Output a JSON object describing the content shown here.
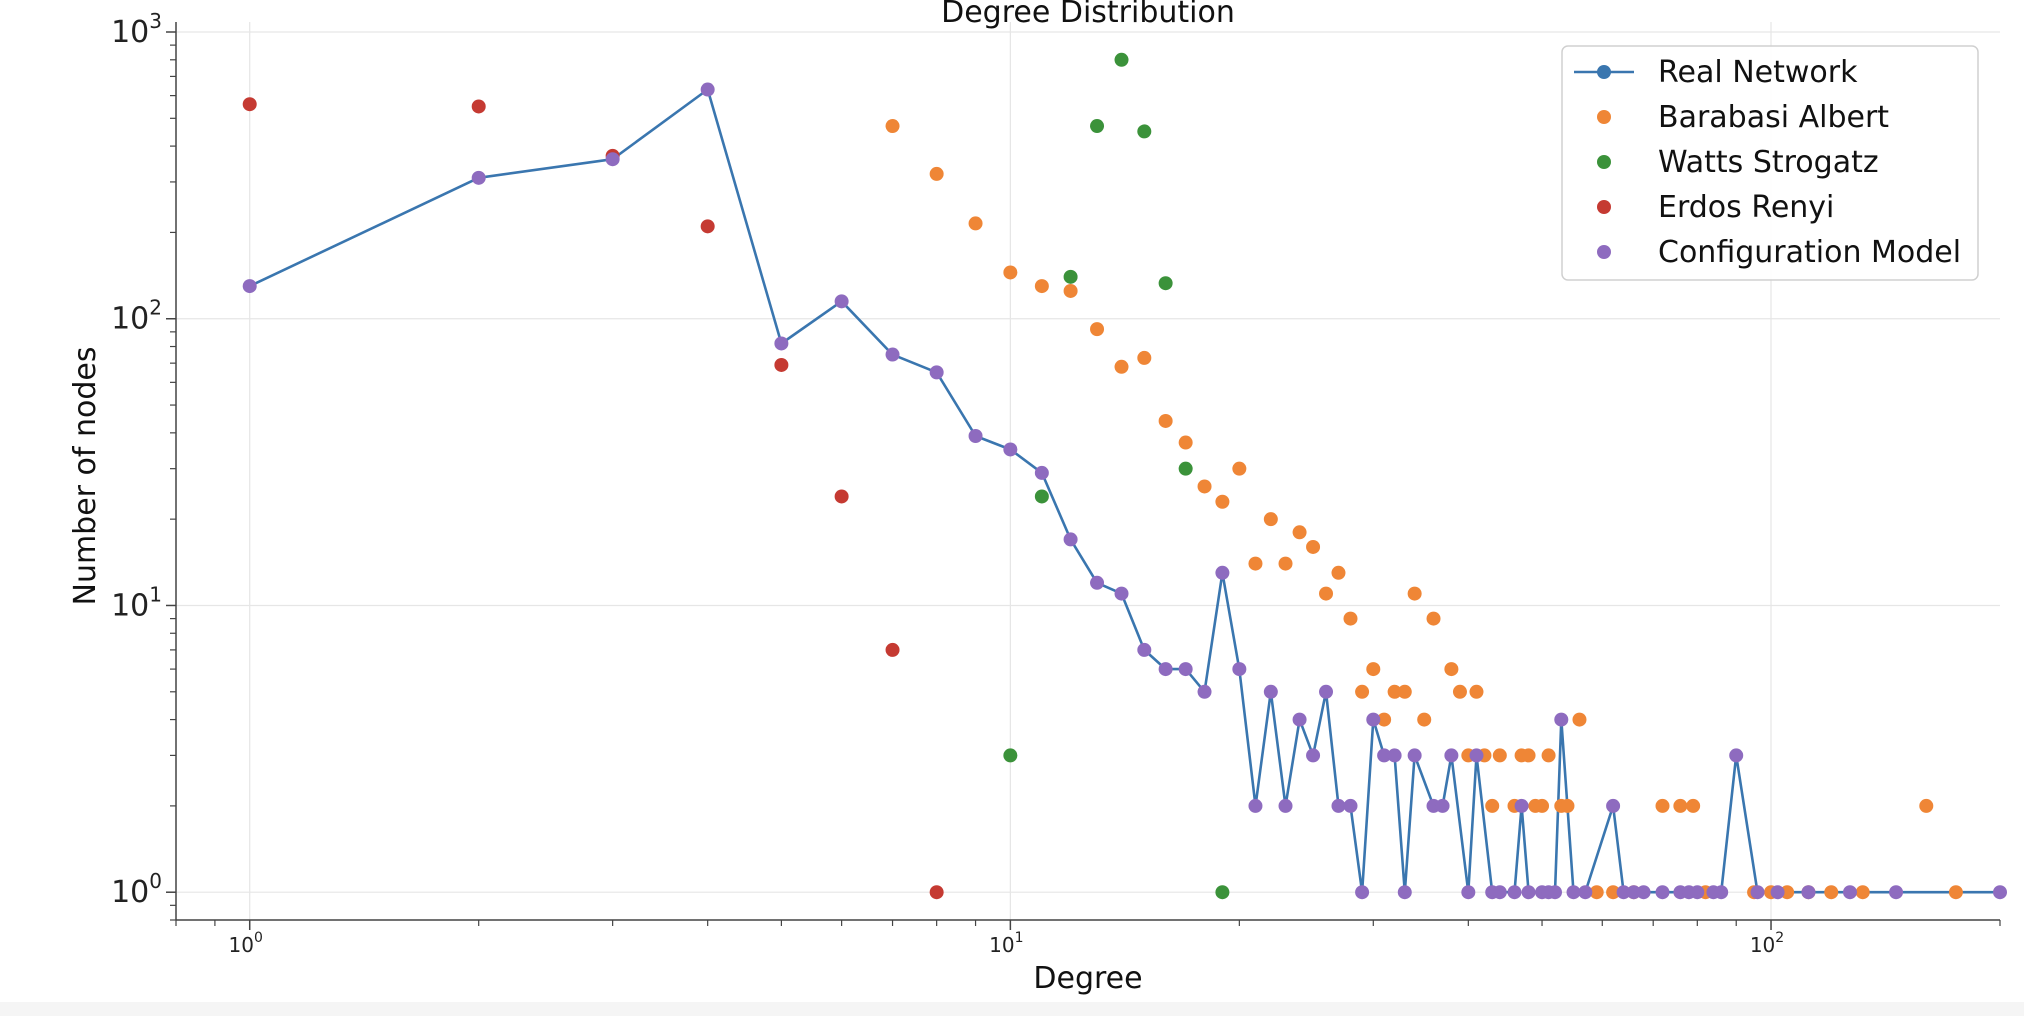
{
  "chart_data": {
    "type": "scatter",
    "title": "Degree Distribution",
    "xlabel": "Degree",
    "ylabel": "Number of nodes",
    "xscale": "log",
    "yscale": "log",
    "xlim": [
      0.8,
      200
    ],
    "ylim": [
      0.8,
      1000
    ],
    "grid": true,
    "legend_position": "top-right",
    "x_ticks": [
      {
        "value": 1,
        "base": "10",
        "exp": "0"
      },
      {
        "value": 10,
        "base": "10",
        "exp": "1"
      },
      {
        "value": 100,
        "base": "10",
        "exp": "2"
      }
    ],
    "y_ticks": [
      {
        "value": 1,
        "base": "10",
        "exp": "0"
      },
      {
        "value": 10,
        "base": "10",
        "exp": "1"
      },
      {
        "value": 100,
        "base": "10",
        "exp": "2"
      },
      {
        "value": 1000,
        "base": "10",
        "exp": "3"
      }
    ],
    "series": [
      {
        "name": "Real Network",
        "style": "line-marker",
        "color": "#3a76af",
        "marker_color": "#8e6bbf",
        "points": [
          [
            1,
            130
          ],
          [
            2,
            310
          ],
          [
            3,
            360
          ],
          [
            4,
            630
          ],
          [
            5,
            82
          ],
          [
            6,
            115
          ],
          [
            7,
            75
          ],
          [
            8,
            65
          ],
          [
            9,
            39
          ],
          [
            10,
            35
          ],
          [
            11,
            29
          ],
          [
            12,
            17
          ],
          [
            13,
            12
          ],
          [
            14,
            11
          ],
          [
            15,
            7
          ],
          [
            16,
            6
          ],
          [
            17,
            6
          ],
          [
            18,
            5
          ],
          [
            19,
            13
          ],
          [
            20,
            6
          ],
          [
            21,
            2
          ],
          [
            22,
            5
          ],
          [
            23,
            2
          ],
          [
            24,
            4
          ],
          [
            25,
            3
          ],
          [
            26,
            5
          ],
          [
            27,
            2
          ],
          [
            28,
            2
          ],
          [
            29,
            1
          ],
          [
            30,
            4
          ],
          [
            31,
            3
          ],
          [
            32,
            3
          ],
          [
            33,
            1
          ],
          [
            34,
            3
          ],
          [
            36,
            2
          ],
          [
            37,
            2
          ],
          [
            38,
            3
          ],
          [
            40,
            1
          ],
          [
            41,
            3
          ],
          [
            43,
            1
          ],
          [
            44,
            1
          ],
          [
            46,
            1
          ],
          [
            47,
            2
          ],
          [
            48,
            1
          ],
          [
            50,
            1
          ],
          [
            51,
            1
          ],
          [
            52,
            1
          ],
          [
            53,
            4
          ],
          [
            55,
            1
          ],
          [
            57,
            1
          ],
          [
            62,
            2
          ],
          [
            64,
            1
          ],
          [
            66,
            1
          ],
          [
            68,
            1
          ],
          [
            72,
            1
          ],
          [
            76,
            1
          ],
          [
            78,
            1
          ],
          [
            80,
            1
          ],
          [
            84,
            1
          ],
          [
            86,
            1
          ],
          [
            90,
            3
          ],
          [
            96,
            1
          ],
          [
            102,
            1
          ],
          [
            112,
            1
          ],
          [
            127,
            1
          ],
          [
            146,
            1
          ],
          [
            200,
            1
          ]
        ]
      },
      {
        "name": "Barabasi Albert",
        "style": "marker",
        "color": "#ef8636",
        "points": [
          [
            7,
            470
          ],
          [
            8,
            320
          ],
          [
            9,
            215
          ],
          [
            10,
            145
          ],
          [
            11,
            130
          ],
          [
            12,
            125
          ],
          [
            13,
            92
          ],
          [
            14,
            68
          ],
          [
            15,
            73
          ],
          [
            16,
            44
          ],
          [
            17,
            37
          ],
          [
            18,
            26
          ],
          [
            19,
            23
          ],
          [
            20,
            30
          ],
          [
            21,
            14
          ],
          [
            22,
            20
          ],
          [
            23,
            14
          ],
          [
            24,
            18
          ],
          [
            25,
            16
          ],
          [
            26,
            11
          ],
          [
            27,
            13
          ],
          [
            28,
            9
          ],
          [
            29,
            5
          ],
          [
            30,
            6
          ],
          [
            31,
            4
          ],
          [
            32,
            5
          ],
          [
            33,
            5
          ],
          [
            34,
            11
          ],
          [
            35,
            4
          ],
          [
            36,
            9
          ],
          [
            38,
            6
          ],
          [
            39,
            5
          ],
          [
            40,
            3
          ],
          [
            41,
            5
          ],
          [
            42,
            3
          ],
          [
            43,
            2
          ],
          [
            44,
            3
          ],
          [
            46,
            2
          ],
          [
            47,
            3
          ],
          [
            48,
            3
          ],
          [
            49,
            2
          ],
          [
            50,
            2
          ],
          [
            51,
            3
          ],
          [
            53,
            2
          ],
          [
            54,
            2
          ],
          [
            56,
            4
          ],
          [
            59,
            1
          ],
          [
            62,
            1
          ],
          [
            66,
            1
          ],
          [
            72,
            2
          ],
          [
            76,
            2
          ],
          [
            79,
            2
          ],
          [
            82,
            1
          ],
          [
            95,
            1
          ],
          [
            100,
            1
          ],
          [
            105,
            1
          ],
          [
            112,
            1
          ],
          [
            120,
            1
          ],
          [
            132,
            1
          ],
          [
            160,
            2
          ],
          [
            175,
            1
          ]
        ]
      },
      {
        "name": "Watts Strogatz",
        "style": "marker",
        "color": "#3b923a",
        "points": [
          [
            10,
            3
          ],
          [
            11,
            24
          ],
          [
            12,
            140
          ],
          [
            13,
            470
          ],
          [
            14,
            800
          ],
          [
            15,
            450
          ],
          [
            16,
            133
          ],
          [
            17,
            30
          ],
          [
            19,
            1
          ]
        ]
      },
      {
        "name": "Erdos Renyi",
        "style": "marker",
        "color": "#c53a32",
        "points": [
          [
            1,
            560
          ],
          [
            2,
            550
          ],
          [
            3,
            370
          ],
          [
            4,
            210
          ],
          [
            5,
            69
          ],
          [
            6,
            24
          ],
          [
            7,
            7
          ],
          [
            8,
            1
          ]
        ]
      },
      {
        "name": "Configuration Model",
        "style": "marker",
        "color": "#8e6bbf",
        "points": [
          [
            1,
            130
          ],
          [
            2,
            310
          ],
          [
            3,
            360
          ],
          [
            4,
            630
          ],
          [
            5,
            82
          ],
          [
            6,
            115
          ],
          [
            7,
            75
          ],
          [
            8,
            65
          ],
          [
            9,
            39
          ],
          [
            10,
            35
          ],
          [
            11,
            29
          ],
          [
            12,
            17
          ],
          [
            13,
            12
          ],
          [
            14,
            11
          ],
          [
            15,
            7
          ],
          [
            16,
            6
          ],
          [
            17,
            6
          ],
          [
            18,
            5
          ],
          [
            19,
            13
          ],
          [
            20,
            6
          ],
          [
            21,
            2
          ],
          [
            22,
            5
          ],
          [
            23,
            2
          ],
          [
            24,
            4
          ],
          [
            25,
            3
          ],
          [
            26,
            5
          ],
          [
            27,
            2
          ],
          [
            28,
            2
          ],
          [
            29,
            1
          ],
          [
            30,
            4
          ],
          [
            31,
            3
          ],
          [
            32,
            3
          ],
          [
            33,
            1
          ],
          [
            34,
            3
          ],
          [
            36,
            2
          ],
          [
            37,
            2
          ],
          [
            38,
            3
          ],
          [
            40,
            1
          ],
          [
            41,
            3
          ],
          [
            43,
            1
          ],
          [
            44,
            1
          ],
          [
            46,
            1
          ],
          [
            47,
            2
          ],
          [
            48,
            1
          ],
          [
            50,
            1
          ],
          [
            51,
            1
          ],
          [
            52,
            1
          ],
          [
            53,
            4
          ],
          [
            55,
            1
          ],
          [
            57,
            1
          ],
          [
            62,
            2
          ],
          [
            64,
            1
          ],
          [
            66,
            1
          ],
          [
            68,
            1
          ],
          [
            72,
            1
          ],
          [
            76,
            1
          ],
          [
            78,
            1
          ],
          [
            80,
            1
          ],
          [
            84,
            1
          ],
          [
            86,
            1
          ],
          [
            90,
            3
          ],
          [
            96,
            1
          ],
          [
            102,
            1
          ],
          [
            112,
            1
          ],
          [
            127,
            1
          ],
          [
            146,
            1
          ],
          [
            200,
            1
          ]
        ]
      }
    ]
  }
}
